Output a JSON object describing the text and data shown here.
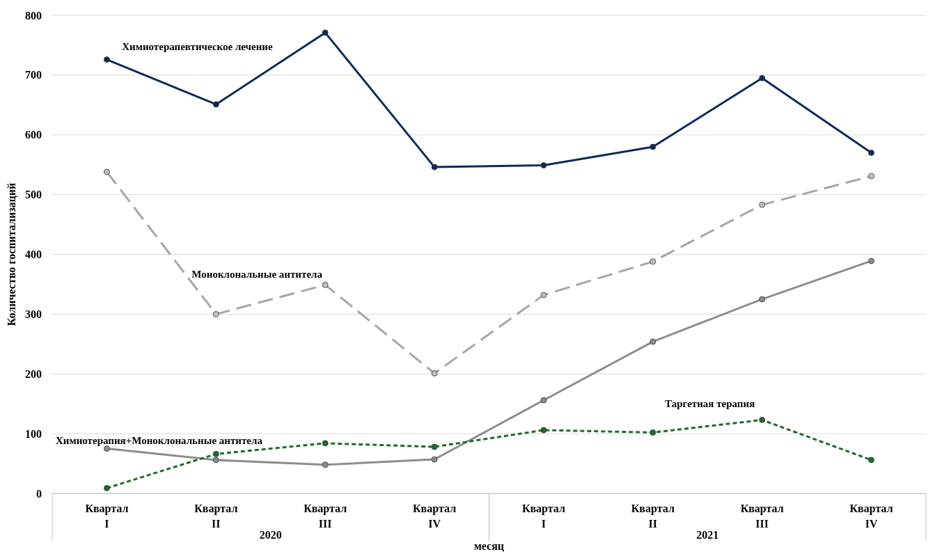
{
  "chart_data": {
    "type": "line",
    "categories": [
      "Квартал\nI",
      "Квартал\nII",
      "Квартал\nIII",
      "Квартал\nIV",
      "Квартал\nI",
      "Квартал\nII",
      "Квартал\nIII",
      "Квартал\nIV"
    ],
    "series": [
      {
        "name": "Химиотерапевтическое лечение",
        "color": "#0e2a5a",
        "line_style": "solid",
        "values": [
          726,
          651,
          771,
          546,
          549,
          580,
          695,
          570
        ]
      },
      {
        "name": "Моноклональные антитела",
        "color": "#a6a6a6",
        "line_style": "dashed",
        "values": [
          538,
          300,
          349,
          201,
          332,
          388,
          483,
          531
        ]
      },
      {
        "name": "Химиотерапия+Моноклональные антитела",
        "color": "#8c8c8c",
        "line_style": "solid",
        "values": [
          75,
          56,
          48,
          57,
          156,
          254,
          325,
          389
        ]
      },
      {
        "name": "Таргетная терапия",
        "color": "#1e6b2e",
        "line_style": "dotted",
        "values": [
          9,
          66,
          84,
          78,
          106,
          102,
          123,
          56
        ]
      }
    ],
    "ylim": [
      0,
      800
    ],
    "yticks": [
      0,
      100,
      200,
      300,
      400,
      500,
      600,
      700,
      800
    ],
    "grid": "y",
    "marker": "circle",
    "ylabel": "Количество госпитализаций",
    "xlabel": "месяц",
    "annotations": [
      "2020",
      "2021"
    ]
  }
}
